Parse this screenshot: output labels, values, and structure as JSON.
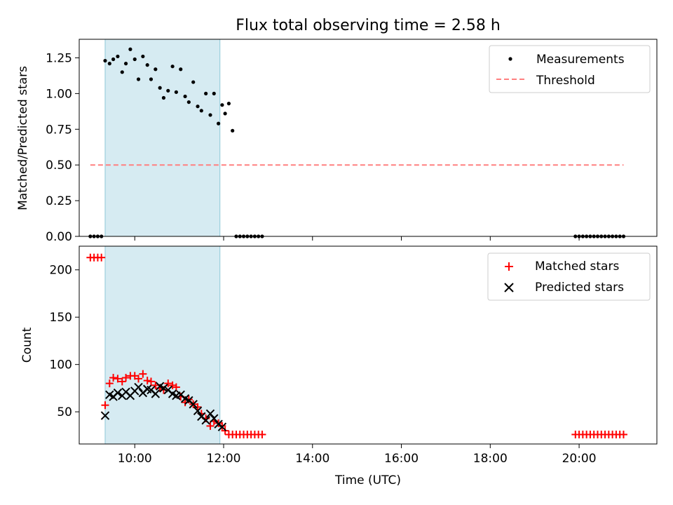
{
  "chart_data": [
    {
      "type": "scatter",
      "title": "Flux total observing time = 2.58 h",
      "ylabel": "Matched/Predicted stars",
      "xlabel": "",
      "xlim": [
        "08:45",
        "21:45"
      ],
      "ylim": [
        0,
        1.38
      ],
      "yticks": [
        0,
        0.25,
        0.5,
        0.75,
        1.0,
        1.25
      ],
      "ytick_labels": [
        "0.00",
        "0.25",
        "0.50",
        "0.75",
        "1.00",
        "1.25"
      ],
      "legend": {
        "position": "top-right",
        "entries": [
          "Measurements",
          "Threshold"
        ]
      },
      "shaded_interval": {
        "x0": "09:20",
        "x1": "11:55",
        "color": "#add8e6"
      },
      "series": [
        {
          "name": "Measurements",
          "color": "#000000",
          "marker": "dot",
          "x": [
            "09:00",
            "09:05",
            "09:10",
            "09:15",
            "09:20",
            "09:26",
            "09:31",
            "09:37",
            "09:43",
            "09:48",
            "09:54",
            "10:00",
            "10:05",
            "10:11",
            "10:17",
            "10:22",
            "10:28",
            "10:34",
            "10:39",
            "10:45",
            "10:51",
            "10:56",
            "11:02",
            "11:08",
            "11:13",
            "11:19",
            "11:25",
            "11:30",
            "11:36",
            "11:42",
            "11:47",
            "11:53",
            "11:58",
            "12:02",
            "12:07",
            "12:12",
            "12:17",
            "12:22",
            "12:27",
            "12:32",
            "12:37",
            "12:42",
            "12:47",
            "12:52",
            "19:55",
            "20:00",
            "20:05",
            "20:10",
            "20:15",
            "20:20",
            "20:25",
            "20:30",
            "20:35",
            "20:40",
            "20:45",
            "20:50",
            "20:55",
            "21:00"
          ],
          "y": [
            0,
            0,
            0,
            0,
            1.23,
            1.21,
            1.24,
            1.26,
            1.15,
            1.21,
            1.31,
            1.24,
            1.1,
            1.26,
            1.2,
            1.1,
            1.17,
            1.04,
            0.97,
            1.02,
            1.19,
            1.01,
            1.17,
            0.98,
            0.94,
            1.08,
            0.91,
            0.88,
            1.0,
            0.85,
            1.0,
            0.79,
            0.92,
            0.86,
            0.93,
            0.74,
            0,
            0,
            0,
            0,
            0,
            0,
            0,
            0,
            0,
            0,
            0,
            0,
            0,
            0,
            0,
            0,
            0,
            0,
            0,
            0,
            0,
            0
          ]
        },
        {
          "name": "Threshold",
          "color": "#ff8080",
          "style": "dashed",
          "x": [
            "09:00",
            "21:00"
          ],
          "y": [
            0.5,
            0.5
          ]
        }
      ]
    },
    {
      "type": "scatter",
      "title": "",
      "ylabel": "Count",
      "xlabel": "Time (UTC)",
      "xlim": [
        "08:45",
        "21:45"
      ],
      "ylim": [
        16,
        225
      ],
      "yticks": [
        50,
        100,
        150,
        200
      ],
      "ytick_labels": [
        "50",
        "100",
        "150",
        "200"
      ],
      "xticks": [
        "10:00",
        "12:00",
        "14:00",
        "16:00",
        "18:00",
        "20:00"
      ],
      "legend": {
        "position": "top-right",
        "entries": [
          "Matched stars",
          "Predicted stars"
        ]
      },
      "shaded_interval": {
        "x0": "09:20",
        "x1": "11:55",
        "color": "#add8e6"
      },
      "series": [
        {
          "name": "Matched stars",
          "color": "#ff0000",
          "marker": "plus",
          "x": [
            "09:00",
            "09:05",
            "09:10",
            "09:15",
            "09:20",
            "09:26",
            "09:31",
            "09:37",
            "09:43",
            "09:48",
            "09:54",
            "10:00",
            "10:05",
            "10:11",
            "10:17",
            "10:22",
            "10:28",
            "10:34",
            "10:39",
            "10:45",
            "10:51",
            "10:56",
            "11:02",
            "11:08",
            "11:13",
            "11:19",
            "11:25",
            "11:30",
            "11:36",
            "11:42",
            "11:47",
            "11:53",
            "11:58",
            "12:02",
            "12:07",
            "12:12",
            "12:17",
            "12:22",
            "12:27",
            "12:32",
            "12:37",
            "12:42",
            "12:47",
            "12:52",
            "19:55",
            "20:00",
            "20:05",
            "20:10",
            "20:15",
            "20:20",
            "20:25",
            "20:30",
            "20:35",
            "20:40",
            "20:45",
            "20:50",
            "20:55",
            "21:00"
          ],
          "y": [
            213,
            213,
            213,
            213,
            57,
            80,
            86,
            85,
            82,
            86,
            88,
            88,
            85,
            90,
            83,
            82,
            78,
            75,
            73,
            80,
            78,
            76,
            66,
            60,
            63,
            58,
            55,
            48,
            43,
            35,
            40,
            38,
            35,
            30,
            26,
            26,
            26,
            26,
            26,
            26,
            26,
            26,
            26,
            26,
            26,
            26,
            26,
            26,
            26,
            26,
            26,
            26,
            26,
            26,
            26,
            26,
            26,
            26
          ]
        },
        {
          "name": "Predicted stars",
          "color": "#000000",
          "marker": "x",
          "x": [
            "09:20",
            "09:26",
            "09:31",
            "09:37",
            "09:43",
            "09:48",
            "09:54",
            "10:00",
            "10:05",
            "10:11",
            "10:17",
            "10:22",
            "10:28",
            "10:34",
            "10:39",
            "10:45",
            "10:51",
            "10:56",
            "11:02",
            "11:08",
            "11:13",
            "11:19",
            "11:25",
            "11:30",
            "11:36",
            "11:42",
            "11:47",
            "11:53",
            "11:58"
          ],
          "y": [
            46,
            68,
            66,
            70,
            67,
            71,
            67,
            72,
            76,
            70,
            74,
            73,
            69,
            77,
            75,
            73,
            69,
            67,
            68,
            64,
            62,
            58,
            51,
            45,
            41,
            48,
            43,
            37,
            34
          ]
        }
      ]
    }
  ]
}
